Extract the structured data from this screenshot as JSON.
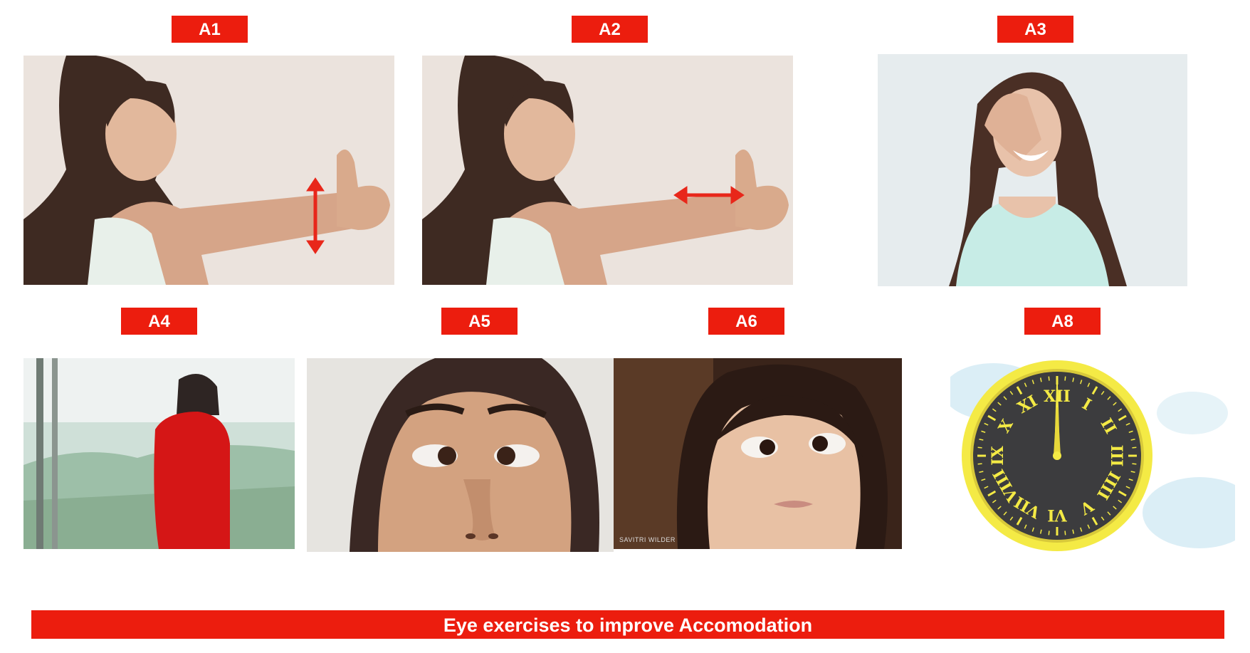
{
  "labels": {
    "a1": "A1",
    "a2": "A2",
    "a3": "A3",
    "a4": "A4",
    "a5": "A5",
    "a6": "A6",
    "a8": "A8"
  },
  "caption": "Eye exercises to improve Accomodation",
  "watermark": "SAVITRI WILDER",
  "colors": {
    "label_bg": "#ec1d0e",
    "label_text": "#ffffff",
    "arrow": "#e8271a",
    "clock_face": "#3c3c3e",
    "clock_ring": "#f4ea45"
  }
}
